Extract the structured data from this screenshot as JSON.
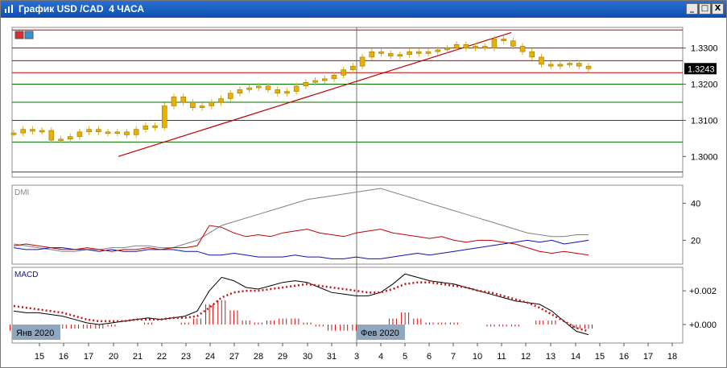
{
  "window": {
    "title": "График USD /CAD  4 ЧАСА",
    "buttons": {
      "minimize": "_",
      "restore": "□",
      "close": "X"
    }
  },
  "colors": {
    "candle": "#e8b000",
    "trendline": "#c00000",
    "resistance": "#c00000",
    "support": "#007000",
    "macd_line": "#000000",
    "macd_signal": "#d01010",
    "dmi_adx": "#808080",
    "dmi_plus": "#1010b0",
    "dmi_minus": "#c00000",
    "price_tag_bg": "#000000"
  },
  "chart_data": [
    {
      "type": "candlestick",
      "title": "График USD /CAD  4 ЧАСА",
      "ylim": [
        1.2945,
        1.3355
      ],
      "y_ticks": [
        "1.3300",
        "1.3200",
        "1.3100",
        "1.3000"
      ],
      "current_price": "1.3243",
      "horizontal_levels": {
        "resistance": [
          1.335,
          1.33,
          1.3265,
          1.3232
        ],
        "support": [
          1.32,
          1.315,
          1.31,
          1.304,
          1.2957
        ]
      },
      "trendline": {
        "from": {
          "x": 20.3,
          "y": 1.3
        },
        "to": {
          "x": 11.4,
          "y": 1.3343
        }
      },
      "price_path": [
        [
          15.0,
          1.3065
        ],
        [
          15.5,
          1.3075
        ],
        [
          16.0,
          1.307
        ],
        [
          16.5,
          1.3072
        ],
        [
          17.0,
          1.3045
        ],
        [
          17.5,
          1.3048
        ],
        [
          18.0,
          1.3055
        ],
        [
          18.5,
          1.3068
        ],
        [
          19.0,
          1.3075
        ],
        [
          19.5,
          1.3068
        ],
        [
          20.0,
          1.3065
        ],
        [
          20.5,
          1.3068
        ],
        [
          21.0,
          1.306
        ],
        [
          21.5,
          1.3075
        ],
        [
          22.0,
          1.3085
        ],
        [
          22.5,
          1.308
        ],
        [
          23.0,
          1.314
        ],
        [
          23.5,
          1.3165
        ],
        [
          24.0,
          1.315
        ],
        [
          24.5,
          1.3135
        ],
        [
          25.0,
          1.314
        ],
        [
          25.5,
          1.315
        ],
        [
          26.0,
          1.316
        ],
        [
          26.5,
          1.3175
        ],
        [
          27.0,
          1.3185
        ],
        [
          27.5,
          1.319
        ],
        [
          28.0,
          1.3195
        ],
        [
          28.5,
          1.3185
        ],
        [
          29.0,
          1.3175
        ],
        [
          29.5,
          1.318
        ],
        [
          30.0,
          1.3195
        ],
        [
          30.5,
          1.3205
        ],
        [
          31.0,
          1.321
        ],
        [
          31.5,
          1.3215
        ],
        [
          32.0,
          1.3225
        ],
        [
          32.5,
          1.324
        ],
        [
          33.0,
          1.325
        ],
        [
          33.5,
          1.3275
        ],
        [
          34.0,
          1.329
        ],
        [
          34.5,
          1.3285
        ],
        [
          35.0,
          1.3278
        ],
        [
          35.5,
          1.3282
        ],
        [
          36.0,
          1.329
        ],
        [
          36.5,
          1.3285
        ],
        [
          37.0,
          1.329
        ],
        [
          37.5,
          1.3295
        ],
        [
          38.0,
          1.33
        ],
        [
          38.5,
          1.331
        ],
        [
          39.0,
          1.33
        ],
        [
          39.5,
          1.3305
        ],
        [
          40.0,
          1.33
        ],
        [
          40.5,
          1.3325
        ],
        [
          41.0,
          1.332
        ],
        [
          41.5,
          1.3305
        ],
        [
          42.0,
          1.329
        ],
        [
          42.5,
          1.3275
        ],
        [
          43.0,
          1.3255
        ],
        [
          43.5,
          1.325
        ],
        [
          44.0,
          1.3255
        ],
        [
          44.5,
          1.3258
        ],
        [
          45.0,
          1.325
        ],
        [
          45.5,
          1.3243
        ]
      ],
      "x_tick_labels": [
        "15",
        "16",
        "17",
        "20",
        "21",
        "22",
        "23",
        "24",
        "27",
        "28",
        "29",
        "30",
        "31",
        "3",
        "4",
        "5",
        "6",
        "7",
        "10",
        "11",
        "12",
        "13",
        "14",
        "15",
        "16",
        "17",
        "18"
      ],
      "period_labels": [
        "Янв 2020",
        "Фев 2020"
      ]
    },
    {
      "type": "line",
      "title": "DMI",
      "ylim": [
        8,
        48
      ],
      "y_ticks": [
        "40",
        "20"
      ],
      "series": [
        {
          "values": [
            18,
            17,
            16,
            15,
            14,
            14,
            15,
            15,
            16,
            16,
            17,
            17,
            16,
            16,
            18,
            20,
            24,
            28,
            30,
            32,
            34,
            36,
            38,
            40,
            42,
            43,
            44,
            45,
            46,
            47,
            48,
            46,
            44,
            42,
            40,
            38,
            36,
            34,
            32,
            30,
            28,
            26,
            24,
            23,
            22,
            22,
            23,
            23
          ]
        },
        {
          "values": [
            16,
            15,
            15,
            16,
            16,
            15,
            15,
            14,
            15,
            14,
            14,
            15,
            15,
            15,
            14,
            14,
            12,
            12,
            13,
            12,
            11,
            11,
            11,
            12,
            11,
            11,
            10,
            10,
            11,
            10,
            10,
            11,
            12,
            13,
            12,
            13,
            14,
            15,
            16,
            17,
            18,
            19,
            20,
            19,
            20,
            18,
            19,
            20
          ]
        },
        {
          "values": [
            17,
            18,
            17,
            16,
            15,
            15,
            16,
            15,
            14,
            15,
            15,
            16,
            15,
            16,
            16,
            17,
            28,
            27,
            24,
            22,
            23,
            22,
            24,
            25,
            26,
            24,
            23,
            22,
            24,
            25,
            26,
            24,
            23,
            22,
            21,
            22,
            20,
            19,
            20,
            20,
            19,
            18,
            16,
            14,
            13,
            14,
            13,
            12
          ]
        }
      ]
    },
    {
      "type": "line",
      "title": "MACD",
      "ylim": [
        -0.001,
        0.0032
      ],
      "y_ticks": [
        "+0.002",
        "+0.000"
      ],
      "series": [
        {
          "values": [
            0.0008,
            0.0007,
            0.0007,
            0.0006,
            0.0005,
            0.0003,
            0.0001,
            0.0,
            0.0001,
            0.0002,
            0.0003,
            0.0004,
            0.0003,
            0.0004,
            0.0005,
            0.0008,
            0.002,
            0.0028,
            0.0026,
            0.0022,
            0.0021,
            0.0023,
            0.0025,
            0.0026,
            0.0025,
            0.0022,
            0.0019,
            0.0018,
            0.0017,
            0.0017,
            0.0019,
            0.0024,
            0.003,
            0.0028,
            0.0026,
            0.0025,
            0.0024,
            0.0022,
            0.002,
            0.0018,
            0.0016,
            0.0014,
            0.0013,
            0.0012,
            0.0008,
            0.0002,
            -0.0004,
            -0.0006
          ]
        },
        {
          "values": [
            0.0011,
            0.001,
            0.0009,
            0.0008,
            0.0007,
            0.0005,
            0.0003,
            0.0002,
            0.0002,
            0.0002,
            0.0003,
            0.0003,
            0.0003,
            0.0004,
            0.0004,
            0.0005,
            0.001,
            0.0016,
            0.0019,
            0.002,
            0.002,
            0.0021,
            0.0022,
            0.0023,
            0.0024,
            0.0023,
            0.0022,
            0.0021,
            0.002,
            0.0019,
            0.0019,
            0.0021,
            0.0024,
            0.0025,
            0.0025,
            0.0024,
            0.0023,
            0.0022,
            0.002,
            0.0019,
            0.0017,
            0.0015,
            0.0013,
            0.001,
            0.0006,
            0.0002,
            -0.0002,
            -0.0004
          ]
        }
      ]
    }
  ]
}
